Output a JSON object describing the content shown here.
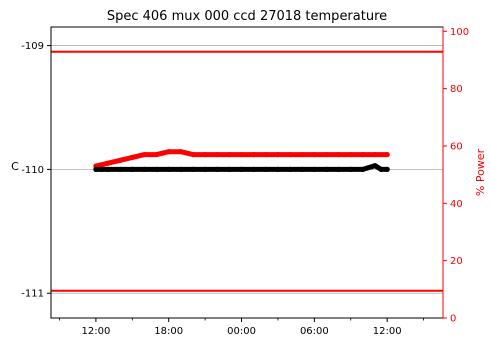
{
  "chart_data": {
    "type": "scatter",
    "title": "Spec 406 mux 000 ccd 27018 temperature",
    "ylabel_left": "C",
    "ylabel_right": "% Power",
    "x_tick_labels": [
      "12:00",
      "18:00",
      "00:00",
      "06:00",
      "12:00"
    ],
    "x_ticks_hours": [
      12,
      18,
      24,
      30,
      36
    ],
    "x_minor_ticks_hours": [
      9,
      15,
      21,
      27,
      33,
      39
    ],
    "xlim_hours": [
      8.3,
      40.6
    ],
    "ylim_left": [
      -111.2,
      -108.85
    ],
    "yticks_left": [
      -109,
      -110,
      -111
    ],
    "ylim_right": [
      0,
      101.5
    ],
    "yticks_right": [
      0,
      20,
      40,
      60,
      80,
      100
    ],
    "grid": "horizontal",
    "colors": {
      "temperature": "#000000",
      "power": "#ff0000",
      "limits": "#ff0000",
      "grid": "#b0b0b0",
      "right_axis": "#ff0000"
    },
    "limit_lines": [
      -109.05,
      -110.98
    ],
    "series": [
      {
        "axis": "left",
        "color": "#000000",
        "x_hours": [
          12.0,
          12.5,
          13.0,
          14.0,
          15.0,
          16.0,
          17.0,
          18.0,
          19.0,
          20.0,
          21.0,
          22.0,
          23.0,
          24.0,
          25.0,
          26.0,
          27.0,
          28.0,
          29.0,
          30.0,
          31.0,
          32.0,
          33.0,
          34.0,
          35.0,
          35.5,
          36.0
        ],
        "y": [
          -110.0,
          -110.0,
          -110.0,
          -110.0,
          -110.0,
          -110.0,
          -110.0,
          -110.0,
          -110.0,
          -110.0,
          -110.0,
          -110.0,
          -110.0,
          -110.0,
          -110.0,
          -110.0,
          -110.0,
          -110.0,
          -110.0,
          -110.0,
          -110.0,
          -110.0,
          -110.0,
          -110.0,
          -109.97,
          -110.0,
          -110.0
        ]
      },
      {
        "axis": "right",
        "color": "#ff0000",
        "x_hours": [
          12.0,
          13.0,
          14.0,
          15.0,
          16.0,
          17.0,
          18.0,
          19.0,
          20.0,
          21.0,
          22.0,
          23.0,
          24.0,
          25.0,
          26.0,
          27.0,
          28.0,
          29.0,
          30.0,
          31.0,
          32.0,
          33.0,
          34.0,
          35.0,
          36.0
        ],
        "y": [
          53,
          54,
          55,
          56,
          57,
          57,
          58,
          58,
          57,
          57,
          57,
          57,
          57,
          57,
          57,
          57,
          57,
          57,
          57,
          57,
          57,
          57,
          57,
          57,
          57
        ]
      }
    ]
  }
}
